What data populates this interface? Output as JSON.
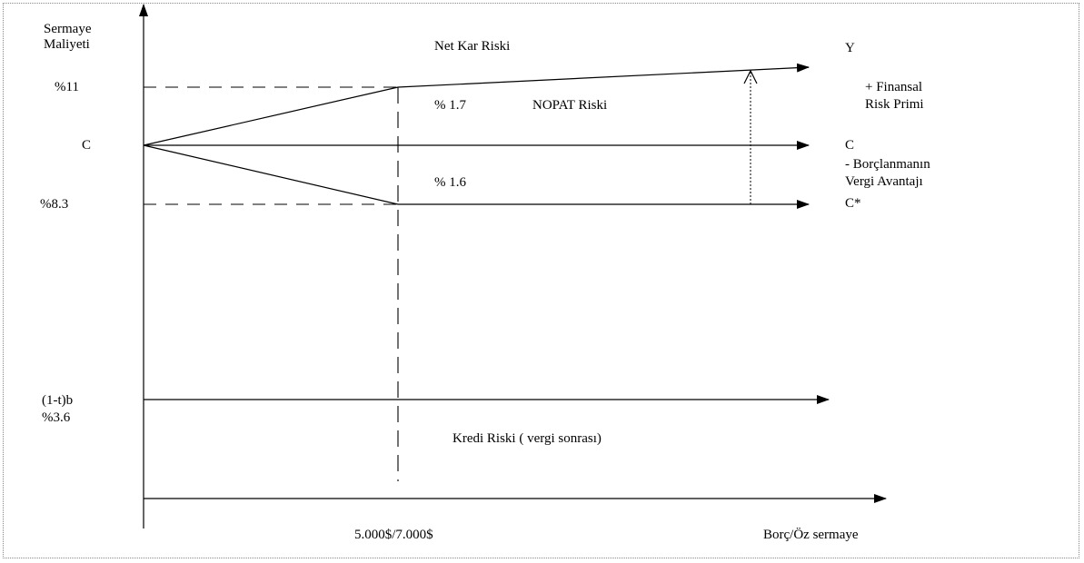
{
  "diagram": {
    "y_axis_title_line1": "Sermaye",
    "y_axis_title_line2": "Maliyeti",
    "x_axis_title": "Borç/Öz sermaye",
    "y_ticks": {
      "high": "%11",
      "c": "C",
      "low": "%8.3",
      "debt_line1": "(1-t)b",
      "debt_line2": "%3.6"
    },
    "x_tick": "5.000$/7.000$",
    "net_income_risk": "Net Kar Riski",
    "nopat_risk": "NOPAT Riski",
    "credit_risk": "Kredi Riski ( vergi sonrası)",
    "delta_up": "% 1.7",
    "delta_down": "% 1.6",
    "line_end_y": "Y",
    "line_end_c": "C",
    "line_end_cstar": "C*",
    "financial_risk_line1": "+ Finansal",
    "financial_risk_line2": "Risk Primi",
    "tax_adv_line1": "- Borçlanmanın",
    "tax_adv_line2": "Vergi Avantajı"
  },
  "colors": {
    "ink": "#000000",
    "frame": "#888888"
  }
}
